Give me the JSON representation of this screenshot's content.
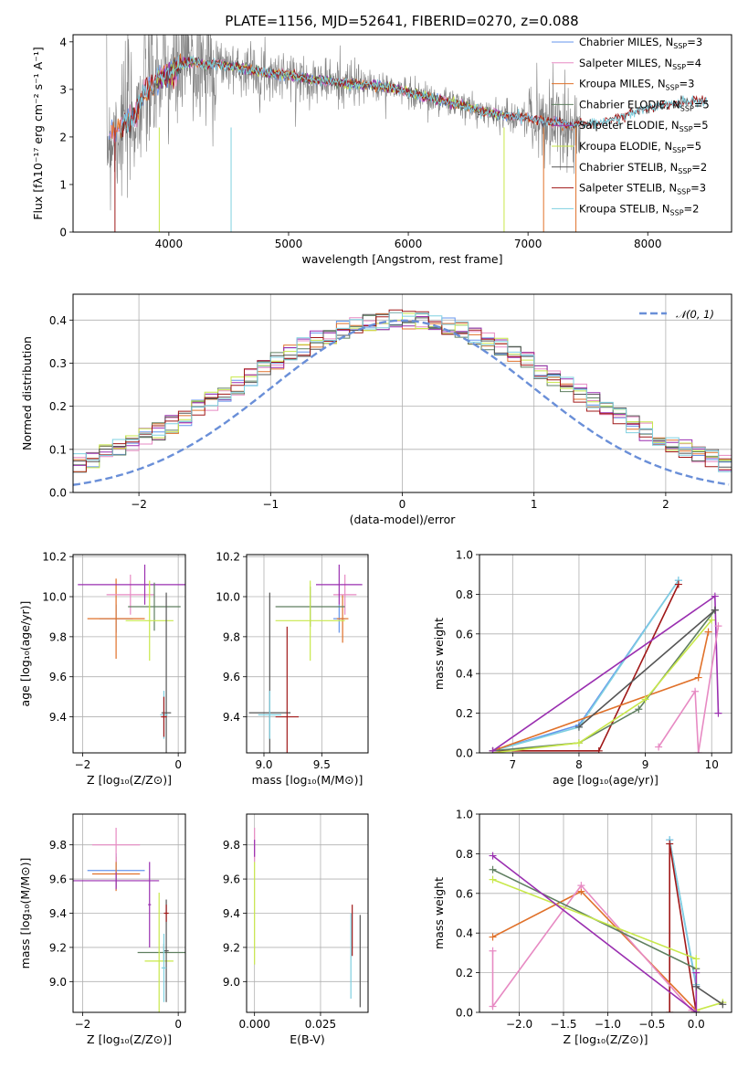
{
  "figure": {
    "title": "PLATE=1156, MJD=52641, FIBERID=0270, z=0.088"
  },
  "colors": {
    "chabrier_miles": "#6495ed",
    "salpeter_miles": "#e78ac3",
    "kroupa_miles": "#e0712a",
    "chabrier_elodie": "#5f7f60",
    "salpeter_elodie": "#9a2fb0",
    "kroupa_elodie": "#c8e84a",
    "chabrier_stelib": "#555555",
    "salpeter_stelib": "#a01818",
    "kroupa_stelib": "#7fd0e0",
    "data_gray": "#808080",
    "normal": "#6a8fd8"
  },
  "chart_data": [
    {
      "id": "spectrum",
      "type": "line",
      "xlabel": "wavelength [Angstrom, rest frame]",
      "ylabel": "Flux [fλ10⁻¹⁷ erg cm⁻² s⁻¹ A⁻¹]",
      "xlim": [
        3200,
        8700
      ],
      "ylim": [
        0,
        4.15
      ],
      "xticks": [
        "4000",
        "5000",
        "6000",
        "7000",
        "8000"
      ],
      "yticks": [
        "0",
        "1",
        "2",
        "3",
        "4"
      ],
      "legend_placement": "right",
      "legend": [
        "Chabrier MILES, N_SSP=3",
        "Salpeter MILES, N_SSP=4",
        "Kroupa MILES, N_SSP=3",
        "Chabrier ELODIE, N_SSP=5",
        "Salpeter ELODIE, N_SSP=5",
        "Kroupa ELODIE, N_SSP=5",
        "Chabrier STELIB, N_SSP=2",
        "Salpeter STELIB, N_SSP=3",
        "Kroupa STELIB, N_SSP=2"
      ],
      "continuum": {
        "x": [
          3500,
          3600,
          3700,
          3800,
          3900,
          4000,
          4100,
          4200,
          4300,
          4400,
          4500,
          4600,
          4800,
          5000,
          5200,
          5400,
          5600,
          5800,
          6000,
          6200,
          6400,
          6600,
          6800,
          7000,
          7200,
          7400,
          7600,
          7800,
          8000,
          8200,
          8400
        ],
        "y": [
          2.0,
          2.2,
          2.4,
          2.9,
          3.2,
          3.3,
          3.5,
          3.6,
          3.5,
          3.55,
          3.5,
          3.45,
          3.35,
          3.3,
          3.2,
          3.15,
          3.1,
          3.05,
          2.95,
          2.8,
          2.7,
          2.55,
          2.45,
          2.4,
          2.3,
          2.25,
          2.3,
          2.45,
          2.6,
          2.7,
          2.75
        ]
      }
    },
    {
      "id": "residuals",
      "type": "line",
      "xlabel": "(data-model)/error",
      "ylabel": "Normed distribution",
      "xlim": [
        -2.5,
        2.5
      ],
      "ylim": [
        0,
        0.46
      ],
      "xticks": [
        "−2",
        "−1",
        "0",
        "1",
        "2"
      ],
      "yticks": [
        "0.0",
        "0.1",
        "0.2",
        "0.3",
        "0.4"
      ],
      "legend": [
        "𝒩(0, 1)"
      ],
      "legend_placement": "top-right",
      "bin_width": 0.1
    },
    {
      "id": "age_vs_Z",
      "type": "scatter",
      "xlabel": "Z [log₁₀(Z/Z⊙)]",
      "ylabel": "age  [log₁₀(age/yr)]",
      "xlim": [
        -2.2,
        0.15
      ],
      "ylim": [
        9.22,
        10.21
      ],
      "xticks": [
        "−2",
        "0"
      ],
      "yticks": [
        "9.4",
        "9.6",
        "9.8",
        "10.0",
        "10.2"
      ],
      "points": [
        {
          "c": "chabrier_miles",
          "x": -1.3,
          "y": 9.89,
          "xerr": 0.35,
          "yerr": 0.07
        },
        {
          "c": "kroupa_miles",
          "x": -1.3,
          "y": 9.89,
          "xerr": 0.6,
          "yerr": 0.2
        },
        {
          "c": "salpeter_miles",
          "x": -1.0,
          "y": 10.01,
          "xerr": 0.5,
          "yerr": 0.1
        },
        {
          "c": "salpeter_elodie",
          "x": -0.7,
          "y": 10.06,
          "xerr": 1.4,
          "yerr": 0.1
        },
        {
          "c": "chabrier_elodie",
          "x": -0.5,
          "y": 9.95,
          "xerr": 0.55,
          "yerr": 0.12
        },
        {
          "c": "kroupa_elodie",
          "x": -0.6,
          "y": 9.88,
          "xerr": 0.5,
          "yerr": 0.2
        },
        {
          "c": "chabrier_stelib",
          "x": -0.25,
          "y": 9.42,
          "xerr": 0.1,
          "yerr": 0.6
        },
        {
          "c": "kroupa_stelib",
          "x": -0.3,
          "y": 9.41,
          "xerr": 0.08,
          "yerr": 0.12
        },
        {
          "c": "salpeter_stelib",
          "x": -0.3,
          "y": 9.4,
          "xerr": 0.06,
          "yerr": 0.1
        }
      ]
    },
    {
      "id": "age_vs_mass",
      "type": "scatter",
      "xlabel": "mass [log₁₀(M/M⊙)]",
      "ylabel": "",
      "xlim": [
        8.85,
        9.9
      ],
      "ylim": [
        9.22,
        10.21
      ],
      "xticks": [
        "9.0",
        "9.5"
      ],
      "yticks": [
        "9.4",
        "9.6",
        "9.8",
        "10.0",
        "10.2"
      ],
      "points": [
        {
          "c": "chabrier_miles",
          "x": 9.65,
          "y": 9.89,
          "xerr": 0.05,
          "yerr": 0.07
        },
        {
          "c": "kroupa_miles",
          "x": 9.68,
          "y": 9.89,
          "xerr": 0.05,
          "yerr": 0.12
        },
        {
          "c": "salpeter_miles",
          "x": 9.7,
          "y": 10.01,
          "xerr": 0.1,
          "yerr": 0.1
        },
        {
          "c": "salpeter_elodie",
          "x": 9.65,
          "y": 10.06,
          "xerr": 0.2,
          "yerr": 0.1
        },
        {
          "c": "chabrier_elodie",
          "x": 9.4,
          "y": 9.95,
          "xerr": 0.3,
          "yerr": 0.1
        },
        {
          "c": "kroupa_elodie",
          "x": 9.4,
          "y": 9.88,
          "xerr": 0.3,
          "yerr": 0.2
        },
        {
          "c": "chabrier_stelib",
          "x": 9.05,
          "y": 9.42,
          "xerr": 0.18,
          "yerr": 0.6
        },
        {
          "c": "kroupa_stelib",
          "x": 9.05,
          "y": 9.41,
          "xerr": 0.1,
          "yerr": 0.12
        },
        {
          "c": "salpeter_stelib",
          "x": 9.2,
          "y": 9.4,
          "xerr": 0.1,
          "yerr": 0.45
        }
      ]
    },
    {
      "id": "weight_vs_age",
      "type": "line",
      "xlabel": "age  [log₁₀(age/yr)]",
      "ylabel": "mass weight",
      "xlim": [
        6.5,
        10.3
      ],
      "ylim": [
        0,
        1
      ],
      "xticks": [
        "7",
        "8",
        "9",
        "10"
      ],
      "yticks": [
        "0.0",
        "0.2",
        "0.4",
        "0.6",
        "0.8",
        "1.0"
      ],
      "series": [
        {
          "c": "chabrier_miles",
          "x": [
            6.7,
            8.0,
            9.5
          ],
          "y": [
            0.01,
            0.14,
            0.87
          ]
        },
        {
          "c": "kroupa_stelib",
          "x": [
            6.7,
            8.0,
            9.5
          ],
          "y": [
            0.01,
            0.13,
            0.87
          ]
        },
        {
          "c": "salpeter_stelib",
          "x": [
            6.8,
            8.3,
            9.5
          ],
          "y": [
            0.01,
            0.01,
            0.85
          ]
        },
        {
          "c": "kroupa_miles",
          "x": [
            6.7,
            9.8,
            9.95
          ],
          "y": [
            0.01,
            0.38,
            0.61
          ]
        },
        {
          "c": "chabrier_elodie",
          "x": [
            6.7,
            8.0,
            8.9,
            10.05
          ],
          "y": [
            0.01,
            0.05,
            0.22,
            0.72
          ]
        },
        {
          "c": "kroupa_elodie",
          "x": [
            6.7,
            8.0,
            9.0,
            10.0
          ],
          "y": [
            0.0,
            0.05,
            0.27,
            0.67
          ]
        },
        {
          "c": "salpeter_elodie",
          "x": [
            6.7,
            10.05,
            10.1
          ],
          "y": [
            0.01,
            0.79,
            0.2
          ]
        },
        {
          "c": "salpeter_miles",
          "x": [
            9.2,
            9.75,
            9.8,
            10.1
          ],
          "y": [
            0.03,
            0.31,
            0.0,
            0.64
          ]
        },
        {
          "c": "chabrier_stelib",
          "x": [
            8.0,
            10.05
          ],
          "y": [
            0.13,
            0.72
          ]
        }
      ]
    },
    {
      "id": "mass_vs_Z",
      "type": "scatter",
      "xlabel": "Z [log₁₀(Z/Z⊙)]",
      "ylabel": "mass [log₁₀(M/M⊙)]",
      "xlim": [
        -2.2,
        0.15
      ],
      "ylim": [
        8.82,
        9.98
      ],
      "xticks": [
        "−2",
        "0"
      ],
      "yticks": [
        "9.0",
        "9.2",
        "9.4",
        "9.6",
        "9.8"
      ],
      "points": [
        {
          "c": "chabrier_miles",
          "x": -1.3,
          "y": 9.65,
          "xerr": 0.6,
          "yerr": 0.1
        },
        {
          "c": "kroupa_miles",
          "x": -1.3,
          "y": 9.63,
          "xerr": 0.5,
          "yerr": 0.1
        },
        {
          "c": "salpeter_miles",
          "x": -1.3,
          "y": 9.8,
          "xerr": 0.5,
          "yerr": 0.1
        },
        {
          "c": "salpeter_elodie",
          "x": -1.3,
          "y": 9.59,
          "xerr": 0.9,
          "yerr": 0.05
        },
        {
          "c": "salpeter_elodie",
          "x": -0.6,
          "y": 9.45,
          "xerr": 0.03,
          "yerr": 0.25
        },
        {
          "c": "chabrier_elodie",
          "x": -0.3,
          "y": 9.17,
          "xerr": 0.55,
          "yerr": 0.05
        },
        {
          "c": "kroupa_elodie",
          "x": -0.4,
          "y": 9.12,
          "xerr": 0.3,
          "yerr": 0.4
        },
        {
          "c": "chabrier_stelib",
          "x": -0.25,
          "y": 9.18,
          "xerr": 0.05,
          "yerr": 0.3
        },
        {
          "c": "kroupa_stelib",
          "x": -0.3,
          "y": 9.08,
          "xerr": 0.05,
          "yerr": 0.2
        },
        {
          "c": "salpeter_stelib",
          "x": -0.25,
          "y": 9.4,
          "xerr": 0.05,
          "yerr": 0.05
        }
      ]
    },
    {
      "id": "mass_vs_ebv",
      "type": "scatter",
      "xlabel": "E(B-V)",
      "ylabel": "",
      "xlim": [
        -0.003,
        0.043
      ],
      "ylim": [
        8.82,
        9.98
      ],
      "xticks": [
        "0.000",
        "0.025"
      ],
      "yticks": [
        "9.0",
        "9.2",
        "9.4",
        "9.6",
        "9.8"
      ],
      "points": [
        {
          "c": "salpeter_miles",
          "x": 0.0,
          "y": 9.8,
          "xerr": 0,
          "yerr": 0.1
        },
        {
          "c": "salpeter_elodie",
          "x": 0.0,
          "y": 9.78,
          "xerr": 0,
          "yerr": 0.05
        },
        {
          "c": "kroupa_elodie",
          "x": 0.0,
          "y": 9.4,
          "xerr": 0,
          "yerr": 0.3
        },
        {
          "c": "kroupa_stelib",
          "x": 0.0365,
          "y": 9.15,
          "xerr": 0,
          "yerr": 0.25
        },
        {
          "c": "salpeter_stelib",
          "x": 0.037,
          "y": 9.3,
          "xerr": 0,
          "yerr": 0.15
        },
        {
          "c": "chabrier_stelib",
          "x": 0.04,
          "y": 9.12,
          "xerr": 0,
          "yerr": 0.27
        }
      ]
    },
    {
      "id": "weight_vs_Z",
      "type": "line",
      "xlabel": "Z [log₁₀(Z/Z⊙)]",
      "ylabel": "mass weight",
      "xlim": [
        -2.45,
        0.4
      ],
      "ylim": [
        0,
        1
      ],
      "xticks": [
        "−2.0",
        "−1.5",
        "−1.0",
        "−0.5",
        "0.0"
      ],
      "yticks": [
        "0.0",
        "0.2",
        "0.4",
        "0.6",
        "0.8",
        "1.0"
      ],
      "series": [
        {
          "c": "chabrier_miles",
          "x": [
            -0.3,
            0.0
          ],
          "y": [
            0.87,
            0.13
          ]
        },
        {
          "c": "kroupa_stelib",
          "x": [
            -0.3,
            0.0
          ],
          "y": [
            0.87,
            0.14
          ]
        },
        {
          "c": "salpeter_stelib",
          "x": [
            -0.3,
            -0.3,
            0.0
          ],
          "y": [
            0.0,
            0.85,
            0.0
          ]
        },
        {
          "c": "kroupa_miles",
          "x": [
            -2.3,
            -1.3,
            0.0
          ],
          "y": [
            0.38,
            0.61,
            0.01
          ]
        },
        {
          "c": "salpeter_miles",
          "x": [
            -2.3,
            -2.3,
            -1.3,
            -0.05,
            0.0
          ],
          "y": [
            0.31,
            0.03,
            0.64,
            0.01,
            0.0
          ]
        },
        {
          "c": "chabrier_elodie",
          "x": [
            -2.3,
            0.0,
            0.0
          ],
          "y": [
            0.72,
            0.22,
            0.0
          ]
        },
        {
          "c": "kroupa_elodie",
          "x": [
            -2.3,
            0.0,
            0.0,
            0.3
          ],
          "y": [
            0.67,
            0.27,
            0.01,
            0.05
          ]
        },
        {
          "c": "salpeter_elodie",
          "x": [
            -2.3,
            0.0,
            0.0
          ],
          "y": [
            0.79,
            0.0,
            0.2
          ]
        },
        {
          "c": "chabrier_stelib",
          "x": [
            0.0,
            0.3
          ],
          "y": [
            0.13,
            0.04
          ]
        }
      ]
    }
  ]
}
